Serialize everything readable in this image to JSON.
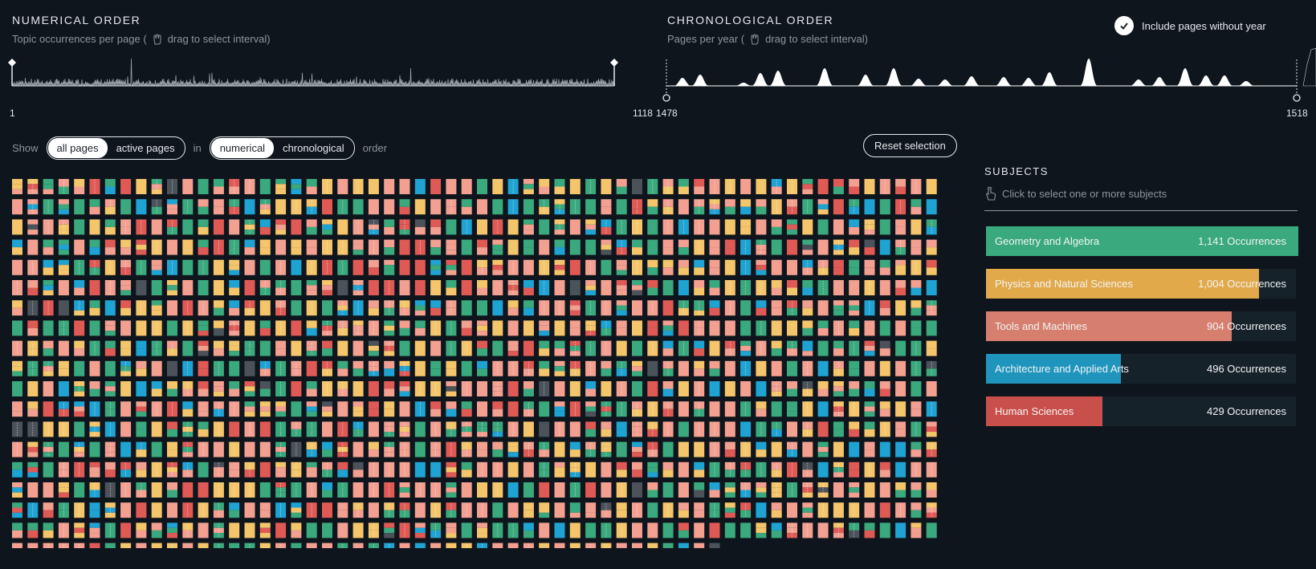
{
  "numerical": {
    "title": "NUMERICAL ORDER",
    "subtitle_prefix": "Topic occurrences per page (",
    "subtitle_action": "drag to select interval)",
    "min_label": "1",
    "max_label": "1118"
  },
  "chronological": {
    "title": "CHRONOLOGICAL ORDER",
    "subtitle_prefix": "Pages per year (",
    "subtitle_action": "drag to select interval)",
    "min_label": "1478",
    "max_label": "1518"
  },
  "include_toggle": {
    "label": "Include pages without year",
    "checked": true
  },
  "controls": {
    "show_label": "Show",
    "in_label": "in",
    "order_label": "order",
    "pages_options": [
      "all pages",
      "active pages"
    ],
    "order_options": [
      "numerical",
      "chronological"
    ],
    "reset_label": "Reset selection"
  },
  "subjects": {
    "title": "SUBJECTS",
    "hint": "Click to select one or more subjects",
    "items": [
      {
        "name": "Geometry and Algebra",
        "count_label": "1,141 Occurrences",
        "count": 1141,
        "color": "#3aa97d"
      },
      {
        "name": "Physics and Natural Sciences",
        "count_label": "1,004 Occurrences",
        "count": 1004,
        "color": "#e2a94b"
      },
      {
        "name": "Tools and Machines",
        "count_label": "904 Occurrences",
        "count": 904,
        "color": "#d77f6f"
      },
      {
        "name": "Architecture and Applied Arts",
        "count_label": "496 Occurrences",
        "count": 496,
        "color": "#1f95bd"
      },
      {
        "name": "Human Sciences",
        "count_label": "429 Occurrences",
        "count": 429,
        "color": "#c9504a"
      }
    ]
  },
  "colors": {
    "geometry": "#3aa97d",
    "physics": "#f5c56b",
    "tools": "#f3a091",
    "architecture": "#1fa3d3",
    "human": "#e05a55",
    "none": "#4b525a"
  }
}
